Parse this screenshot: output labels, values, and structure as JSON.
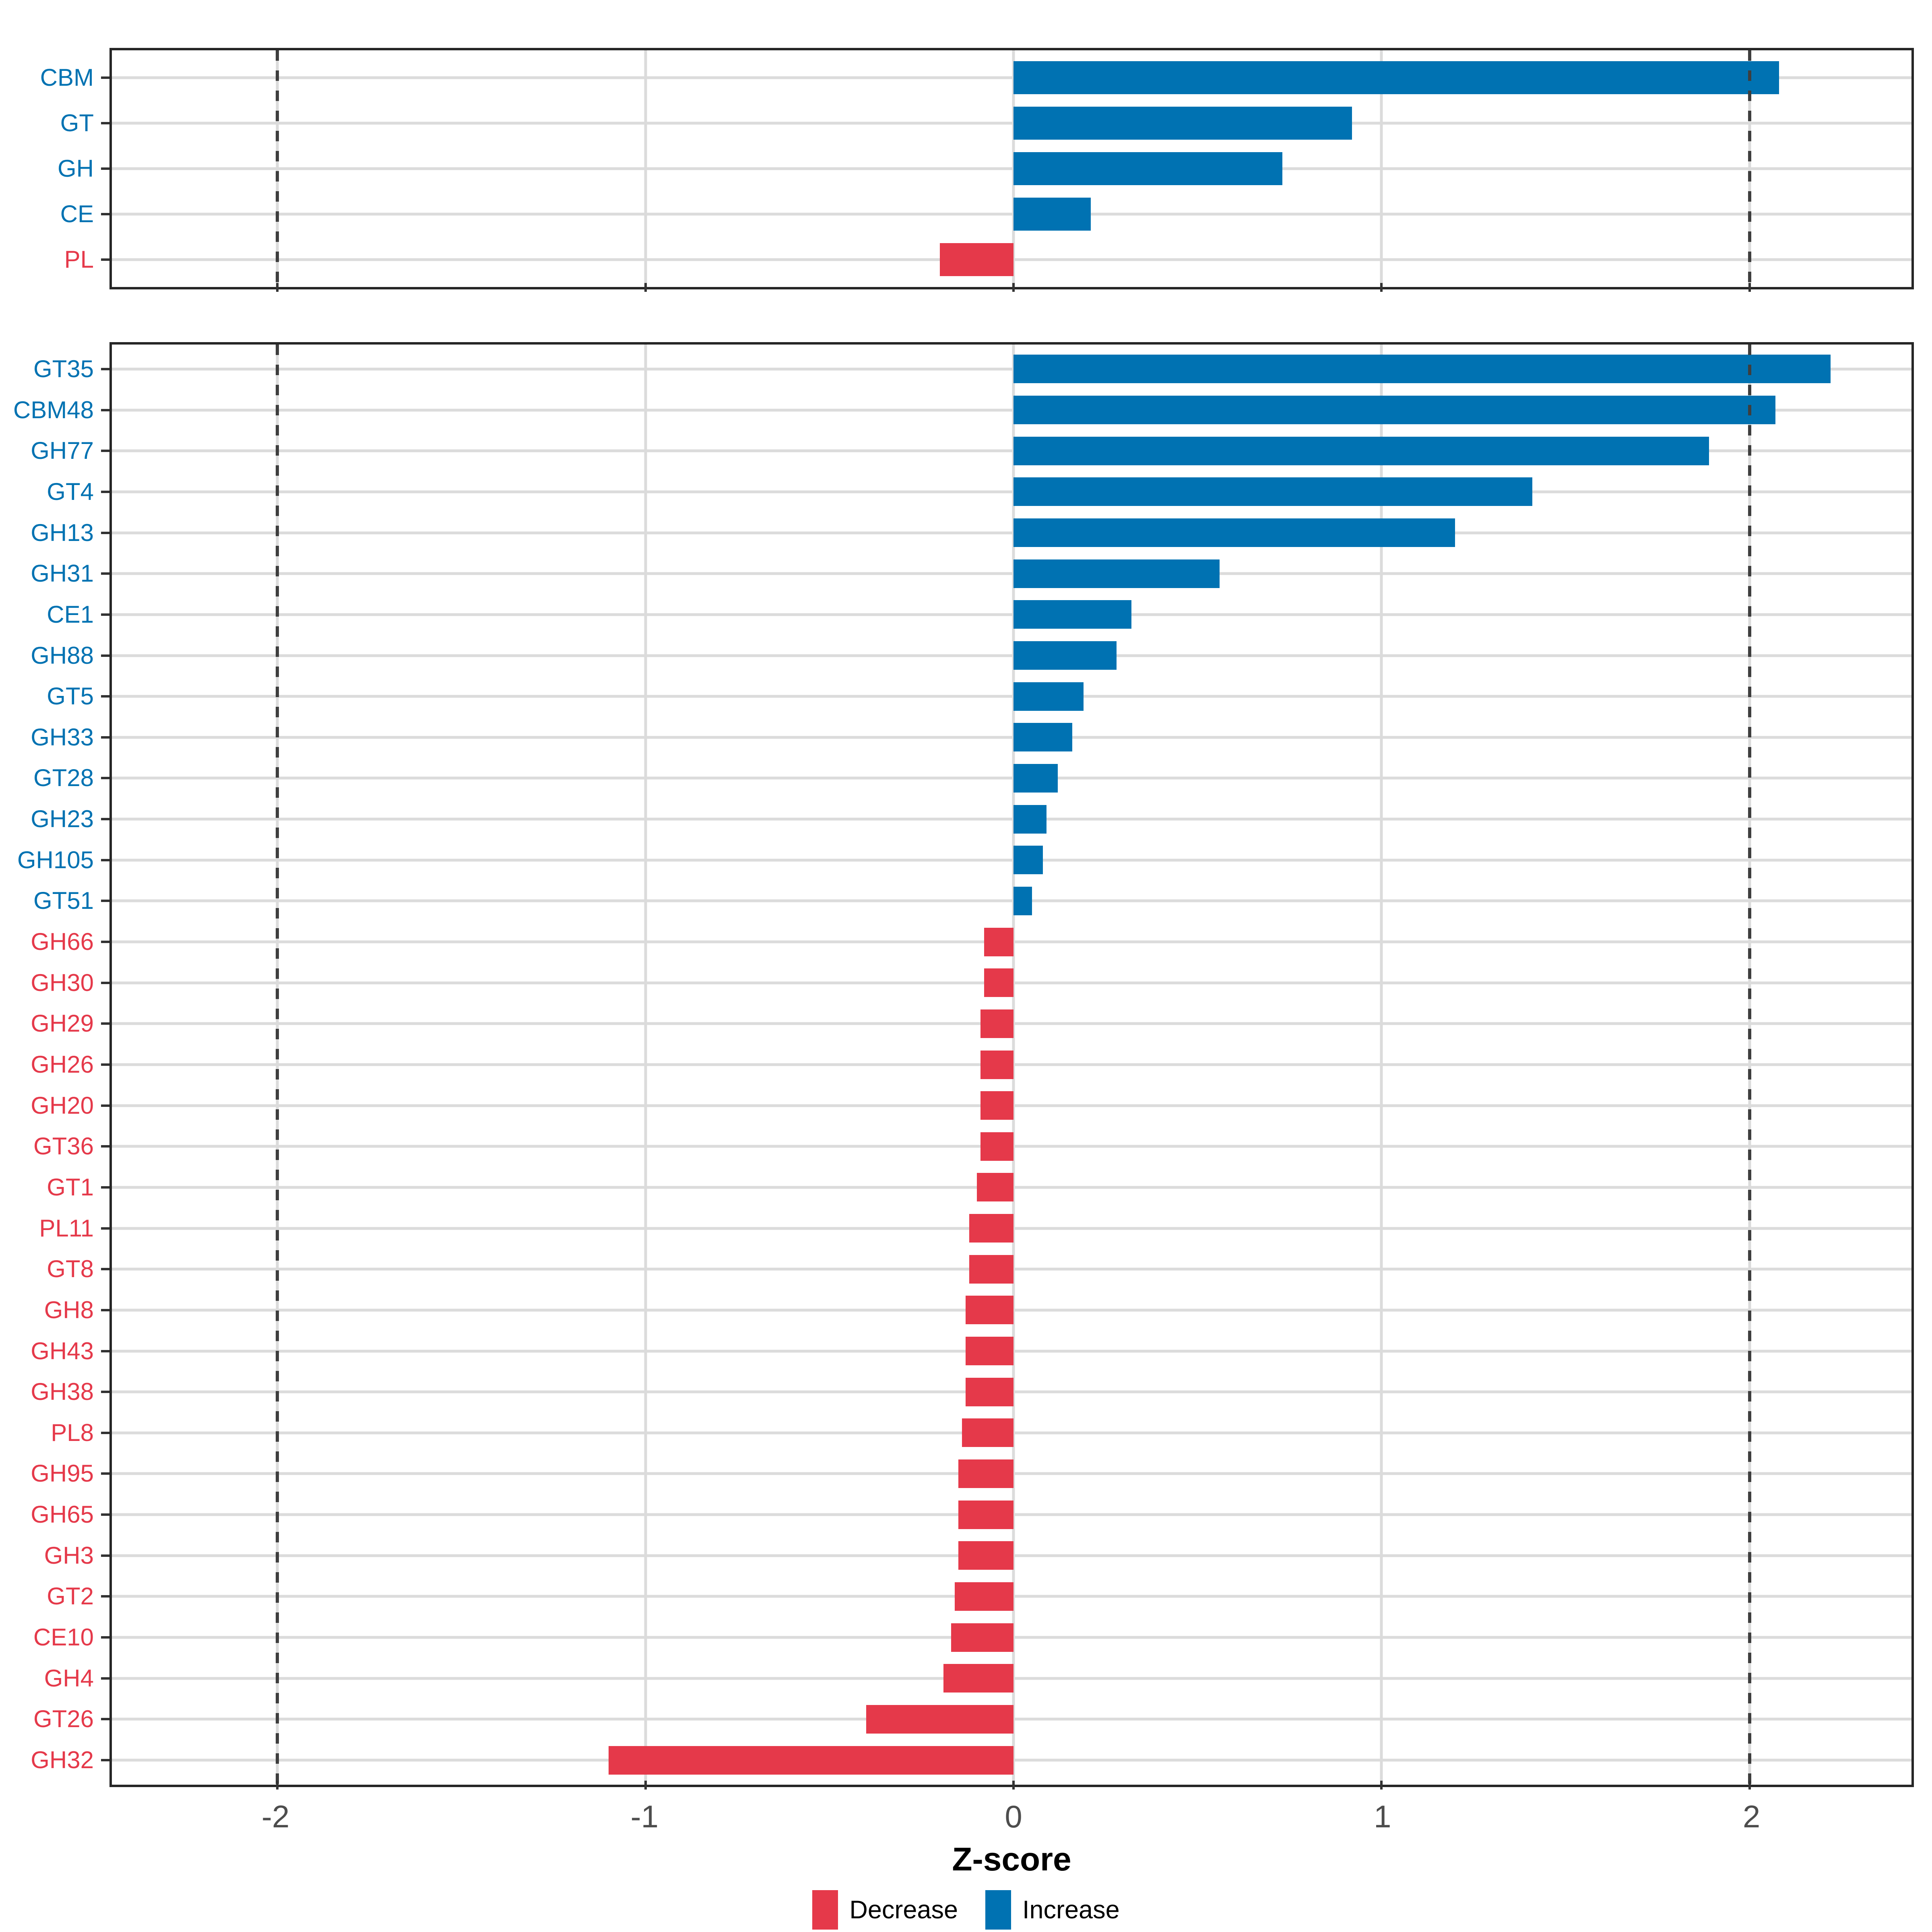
{
  "x_axis": {
    "title": "Z-score",
    "tick_labels": [
      "-2",
      "-1",
      "0",
      "1",
      "2"
    ],
    "tick_values": [
      -2,
      -1,
      0,
      1,
      2
    ],
    "min": -2.45,
    "max": 2.44,
    "gridline_values": [
      -2,
      -1,
      0,
      1,
      2
    ],
    "reference_line_values": [
      -2,
      2
    ],
    "reference_line_style": "dashed"
  },
  "legend": {
    "position": "bottom",
    "items": [
      {
        "label": "Decrease",
        "color": "#E5394A"
      },
      {
        "label": "Increase",
        "color": "#0072B2"
      }
    ]
  },
  "colors": {
    "increase": "#0072B2",
    "decrease": "#E5394A",
    "grid": "#DBDBDB",
    "reference_line": "#3E3E3E",
    "panel_border": "#262626",
    "tick_mark": "#333333",
    "tick_label": "#4D4D4D",
    "axis_title": "#000000",
    "background": "#FFFFFF"
  },
  "chart_data": [
    {
      "type": "bar",
      "orientation": "horizontal",
      "panel": "cazyme-classes",
      "xlabel": "Z-score",
      "xlim": [
        -2.45,
        2.44
      ],
      "grid": true,
      "legend_position": "bottom",
      "categories": [
        "CBM",
        "GT",
        "GH",
        "CE",
        "PL"
      ],
      "values": [
        2.08,
        0.92,
        0.73,
        0.21,
        -0.2
      ],
      "directions": [
        "Increase",
        "Increase",
        "Increase",
        "Increase",
        "Decrease"
      ]
    },
    {
      "type": "bar",
      "orientation": "horizontal",
      "panel": "cazyme-families",
      "xlabel": "Z-score",
      "xlim": [
        -2.45,
        2.44
      ],
      "grid": true,
      "legend_position": "bottom",
      "categories": [
        "GT35",
        "CBM48",
        "GH77",
        "GT4",
        "GH13",
        "GH31",
        "CE1",
        "GH88",
        "GT5",
        "GH33",
        "GT28",
        "GH23",
        "GH105",
        "GT51",
        "GH66",
        "GH30",
        "GH29",
        "GH26",
        "GH20",
        "GT36",
        "GT1",
        "PL11",
        "GT8",
        "GH8",
        "GH43",
        "GH38",
        "PL8",
        "GH95",
        "GH65",
        "GH3",
        "GT2",
        "CE10",
        "GH4",
        "GT26",
        "GH32"
      ],
      "values": [
        2.22,
        2.07,
        1.89,
        1.41,
        1.2,
        0.56,
        0.32,
        0.28,
        0.19,
        0.16,
        0.12,
        0.09,
        0.08,
        0.05,
        -0.08,
        -0.08,
        -0.09,
        -0.09,
        -0.09,
        -0.09,
        -0.1,
        -0.12,
        -0.12,
        -0.13,
        -0.13,
        -0.13,
        -0.14,
        -0.15,
        -0.15,
        -0.15,
        -0.16,
        -0.17,
        -0.19,
        -0.4,
        -1.1
      ],
      "directions": [
        "Increase",
        "Increase",
        "Increase",
        "Increase",
        "Increase",
        "Increase",
        "Increase",
        "Increase",
        "Increase",
        "Increase",
        "Increase",
        "Increase",
        "Increase",
        "Increase",
        "Decrease",
        "Decrease",
        "Decrease",
        "Decrease",
        "Decrease",
        "Decrease",
        "Decrease",
        "Decrease",
        "Decrease",
        "Decrease",
        "Decrease",
        "Decrease",
        "Decrease",
        "Decrease",
        "Decrease",
        "Decrease",
        "Decrease",
        "Decrease",
        "Decrease",
        "Decrease",
        "Decrease"
      ]
    }
  ]
}
